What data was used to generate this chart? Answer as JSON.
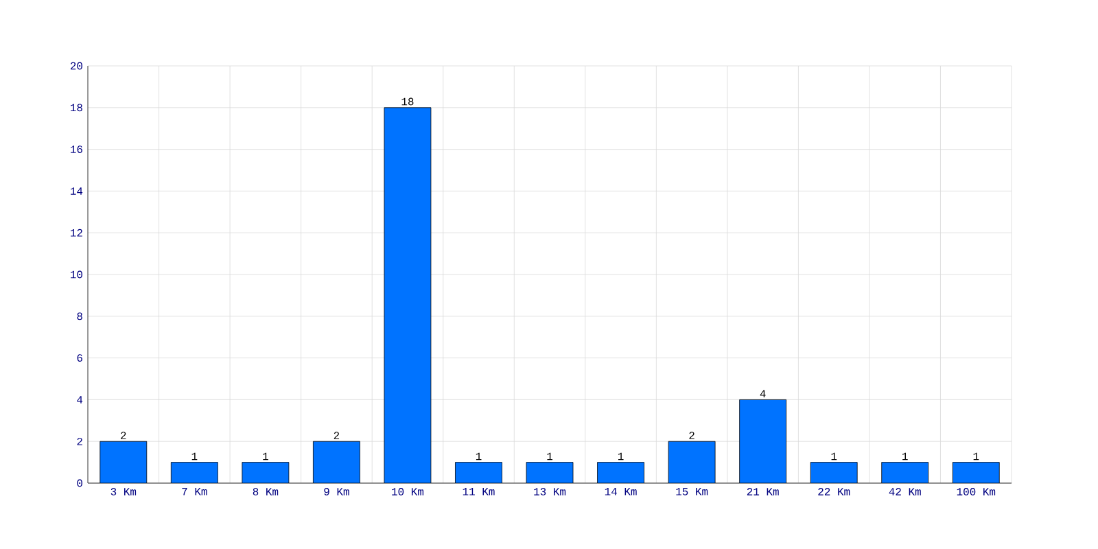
{
  "chart_data": {
    "type": "bar",
    "categories": [
      "3 Km",
      "7 Km",
      "8 Km",
      "9 Km",
      "10 Km",
      "11 Km",
      "13 Km",
      "14 Km",
      "15 Km",
      "21 Km",
      "22 Km",
      "42 Km",
      "100 Km"
    ],
    "values": [
      2,
      1,
      1,
      2,
      18,
      1,
      1,
      1,
      2,
      4,
      1,
      1,
      1
    ],
    "color": "#0073ff",
    "ylim": [
      0,
      20
    ],
    "yticks": [
      0,
      2,
      4,
      6,
      8,
      10,
      12,
      14,
      16,
      18,
      20
    ],
    "grid": true,
    "data_labels": true
  }
}
